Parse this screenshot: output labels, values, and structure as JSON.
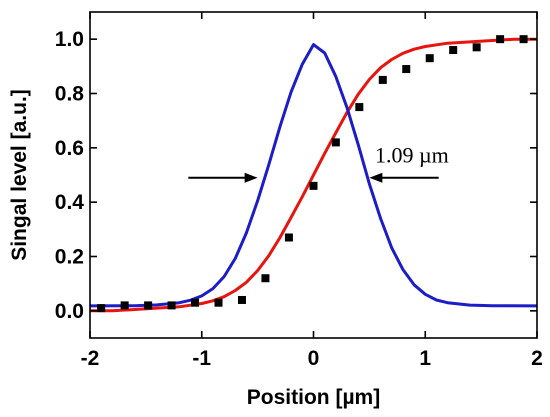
{
  "chart_data": {
    "type": "line",
    "xlabel": "Position [µm]",
    "ylabel": "Singal level [a.u.]",
    "xlim": [
      -2,
      2
    ],
    "ylim": [
      -0.1,
      1.1
    ],
    "xticks": [
      -2,
      -1,
      0,
      1,
      2
    ],
    "xtick_labels": [
      "-2",
      "-1",
      "0",
      "1",
      "2"
    ],
    "yticks": [
      0.0,
      0.2,
      0.4,
      0.6,
      0.8,
      1.0
    ],
    "ytick_labels": [
      "0.0",
      "0.2",
      "0.4",
      "0.6",
      "0.8",
      "1.0"
    ],
    "grid": false,
    "series": [
      {
        "type": "scatter",
        "color": "#000000",
        "marker": "square",
        "x": [
          -1.9,
          -1.69,
          -1.48,
          -1.27,
          -1.06,
          -0.85,
          -0.64,
          -0.43,
          -0.22,
          0.0,
          0.2,
          0.41,
          0.62,
          0.83,
          1.04,
          1.25,
          1.46,
          1.67,
          1.88
        ],
        "y": [
          0.01,
          0.02,
          0.02,
          0.02,
          0.03,
          0.03,
          0.04,
          0.12,
          0.27,
          0.46,
          0.62,
          0.75,
          0.85,
          0.89,
          0.93,
          0.96,
          0.97,
          1.0,
          1.0
        ]
      },
      {
        "type": "line",
        "color": "#e8140e",
        "x": [
          -2.0,
          -1.8,
          -1.6,
          -1.4,
          -1.2,
          -1.0,
          -0.9,
          -0.8,
          -0.7,
          -0.6,
          -0.5,
          -0.4,
          -0.3,
          -0.2,
          -0.1,
          0.0,
          0.1,
          0.2,
          0.3,
          0.4,
          0.5,
          0.6,
          0.7,
          0.8,
          0.9,
          1.0,
          1.2,
          1.4,
          1.6,
          1.8,
          2.0
        ],
        "y": [
          0.0,
          0.0,
          0.005,
          0.01,
          0.015,
          0.027,
          0.037,
          0.052,
          0.075,
          0.105,
          0.148,
          0.203,
          0.27,
          0.344,
          0.42,
          0.5,
          0.58,
          0.656,
          0.73,
          0.797,
          0.852,
          0.895,
          0.925,
          0.948,
          0.963,
          0.973,
          0.985,
          0.99,
          0.995,
          1.0,
          1.0
        ]
      },
      {
        "type": "line",
        "color": "#1c1cc8",
        "x": [
          -2.0,
          -1.6,
          -1.4,
          -1.2,
          -1.1,
          -1.0,
          -0.9,
          -0.8,
          -0.7,
          -0.6,
          -0.5,
          -0.4,
          -0.3,
          -0.2,
          -0.1,
          0.0,
          0.1,
          0.2,
          0.3,
          0.4,
          0.5,
          0.6,
          0.7,
          0.8,
          0.9,
          1.0,
          1.1,
          1.2,
          1.4,
          1.6,
          2.0
        ],
        "y": [
          0.018,
          0.019,
          0.022,
          0.03,
          0.039,
          0.055,
          0.082,
          0.126,
          0.193,
          0.287,
          0.405,
          0.538,
          0.678,
          0.806,
          0.908,
          0.98,
          0.949,
          0.862,
          0.748,
          0.612,
          0.467,
          0.34,
          0.232,
          0.152,
          0.096,
          0.061,
          0.04,
          0.03,
          0.021,
          0.019,
          0.018
        ]
      }
    ],
    "annotations": [
      {
        "text": "1.09 µm",
        "x": 0.55,
        "y": 0.55
      }
    ],
    "arrows": [
      {
        "from": [
          -1.12,
          0.49
        ],
        "to": [
          -0.5,
          0.49
        ]
      },
      {
        "from": [
          1.12,
          0.49
        ],
        "to": [
          0.5,
          0.49
        ]
      }
    ]
  }
}
